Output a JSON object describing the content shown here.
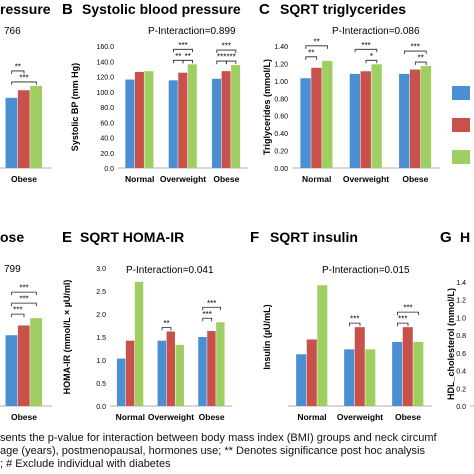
{
  "legend_colors": {
    "c1": "#4a8fd2",
    "c2": "#c8524b",
    "c3": "#9fcf62"
  },
  "stars": {
    "two": "**",
    "three": "***",
    "one": "*"
  },
  "caption": {
    "line1": "sents the p-value for interaction between body mass index (BMI) groups and neck circumf",
    "line2": "age (years), postmenopausal, hormones use; ** Denotes significance post hoc analysis",
    "line3": "; # Exclude individual with diabetes"
  },
  "chart_data": [
    {
      "id": "A",
      "type": "bar",
      "panel_letter": "",
      "title": "ressure",
      "interaction_text": "766",
      "categories": [
        "",
        "Obese"
      ],
      "ylabel": "",
      "yticks": [],
      "ylim": [
        0,
        10
      ],
      "series": [
        {
          "values": [
            null,
            6.5
          ]
        },
        {
          "values": [
            null,
            7.2
          ]
        },
        {
          "values": [
            null,
            7.6
          ]
        }
      ],
      "brackets": [
        {
          "cat": 1,
          "from": 0,
          "to": 2,
          "level": 0,
          "stars": "***"
        },
        {
          "cat": 1,
          "from": 0,
          "to": 1,
          "level": 1,
          "stars": "**"
        }
      ]
    },
    {
      "id": "B",
      "type": "bar",
      "panel_letter": "B",
      "title": "Systolic blood pressure",
      "interaction_text": "P-Interaction=0.899",
      "categories": [
        "Normal",
        "Overweight",
        "Obese"
      ],
      "ylabel": "Systolic BP (mm Hg)",
      "yticks": [
        "0.0",
        "20.0",
        "40.0",
        "60.0",
        "80.0",
        "100.0",
        "120.0",
        "140.0",
        "160.0"
      ],
      "ylim": [
        0,
        160
      ],
      "series": [
        {
          "values": [
            116,
            115,
            117
          ]
        },
        {
          "values": [
            126,
            125,
            127
          ]
        },
        {
          "values": [
            127,
            136,
            135
          ]
        }
      ],
      "brackets": [
        {
          "cat": 1,
          "from": 0,
          "to": 1,
          "level": 0,
          "stars": "**"
        },
        {
          "cat": 1,
          "from": 1,
          "to": 2,
          "level": 0,
          "stars": "**"
        },
        {
          "cat": 1,
          "from": 0,
          "to": 2,
          "level": 1,
          "stars": "***"
        },
        {
          "cat": 2,
          "from": 0,
          "to": 1,
          "level": 0,
          "stars": "***"
        },
        {
          "cat": 2,
          "from": 1,
          "to": 2,
          "level": 0,
          "stars": "***"
        },
        {
          "cat": 2,
          "from": 0,
          "to": 2,
          "level": 1,
          "stars": "***"
        }
      ]
    },
    {
      "id": "C",
      "type": "bar",
      "panel_letter": "C",
      "title": "SQRT triglycerides",
      "interaction_text": "P-Interaction=0.086",
      "categories": [
        "Normal",
        "Overweight",
        "Obese"
      ],
      "ylabel": "Triglycerides (mmol/L)",
      "yticks": [
        "0.00",
        "0.20",
        "0.40",
        "0.60",
        "0.80",
        "1.00",
        "1.20",
        "1.40"
      ],
      "ylim": [
        0,
        1.4
      ],
      "series": [
        {
          "values": [
            1.03,
            1.08,
            1.08
          ]
        },
        {
          "values": [
            1.15,
            1.11,
            1.13
          ]
        },
        {
          "values": [
            1.23,
            1.19,
            1.17
          ]
        }
      ],
      "brackets": [
        {
          "cat": 0,
          "from": 0,
          "to": 1,
          "level": 0,
          "stars": "**"
        },
        {
          "cat": 0,
          "from": 0,
          "to": 2,
          "level": 1,
          "stars": "**"
        },
        {
          "cat": 1,
          "from": 1,
          "to": 2,
          "level": 0,
          "stars": "*"
        },
        {
          "cat": 1,
          "from": 0,
          "to": 2,
          "level": 1,
          "stars": "***"
        },
        {
          "cat": 2,
          "from": 1,
          "to": 2,
          "level": 0,
          "stars": "**"
        },
        {
          "cat": 2,
          "from": 0,
          "to": 2,
          "level": 1,
          "stars": "***"
        }
      ]
    },
    {
      "id": "D",
      "type": "bar",
      "panel_letter": "",
      "title": "ose",
      "interaction_text": "799",
      "categories": [
        "",
        "Obese"
      ],
      "ylabel": "",
      "yticks": [],
      "ylim": [
        0,
        10
      ],
      "series": [
        {
          "values": [
            null,
            5.8
          ]
        },
        {
          "values": [
            null,
            6.6
          ]
        },
        {
          "values": [
            null,
            7.2
          ]
        }
      ],
      "brackets": [
        {
          "cat": 1,
          "from": 0,
          "to": 1,
          "level": 0,
          "stars": "***"
        },
        {
          "cat": 1,
          "from": 0,
          "to": 2,
          "level": 1,
          "stars": "***"
        },
        {
          "cat": 1,
          "from": 0,
          "to": 2,
          "level": 2,
          "stars": "***"
        }
      ]
    },
    {
      "id": "E",
      "type": "bar",
      "panel_letter": "E",
      "title": "SQRT HOMA-IR",
      "interaction_text": "P-Interaction=0.041",
      "categories": [
        "Normal",
        "Overweight",
        "Obese"
      ],
      "ylabel": "HOMA-IR (mmol/L × µU/ml)",
      "yticks": [
        "0.0",
        "0.5",
        "1.0",
        "1.5",
        "2.0",
        "2.5",
        "3.0"
      ],
      "ylim": [
        0,
        3.0
      ],
      "series": [
        {
          "values": [
            1.03,
            1.42,
            1.5
          ]
        },
        {
          "values": [
            1.42,
            1.62,
            1.63
          ]
        },
        {
          "values": [
            2.7,
            1.33,
            1.82
          ]
        }
      ],
      "brackets": [
        {
          "cat": 1,
          "from": 0,
          "to": 1,
          "level": 0,
          "stars": "**"
        },
        {
          "cat": 2,
          "from": 0,
          "to": 1,
          "level": 0,
          "stars": "***"
        },
        {
          "cat": 2,
          "from": 0,
          "to": 2,
          "level": 1,
          "stars": "***"
        }
      ]
    },
    {
      "id": "F",
      "type": "bar",
      "panel_letter": "F",
      "title": "SQRT insulin",
      "interaction_text": "P-Interaction=0.015",
      "categories": [
        "Normal",
        "Overweight",
        "Obese"
      ],
      "ylabel": "Insulin (µU/mL)",
      "yticks": [],
      "ylim": [
        0,
        5.6
      ],
      "series": [
        {
          "values": [
            2.1,
            2.3,
            2.6
          ]
        },
        {
          "values": [
            2.7,
            3.2,
            3.2
          ]
        },
        {
          "values": [
            4.9,
            2.3,
            2.6
          ]
        }
      ],
      "brackets": [
        {
          "cat": 1,
          "from": 0,
          "to": 1,
          "level": 0,
          "stars": "***"
        },
        {
          "cat": 2,
          "from": 0,
          "to": 1,
          "level": 0,
          "stars": "***"
        },
        {
          "cat": 2,
          "from": 0,
          "to": 2,
          "level": 1,
          "stars": "***"
        }
      ]
    },
    {
      "id": "G",
      "type": "bar",
      "panel_letter": "G",
      "title": "H",
      "interaction_text": "",
      "categories": [],
      "ylabel": "HDL_cholesterol (mmol/L)",
      "yticks": [
        "0.0",
        "0.2",
        "0.4",
        "0.6",
        "0.8",
        "1.0",
        "1.2",
        "1.4"
      ],
      "ylim": [
        0,
        1.4
      ],
      "series": [],
      "brackets": []
    }
  ]
}
